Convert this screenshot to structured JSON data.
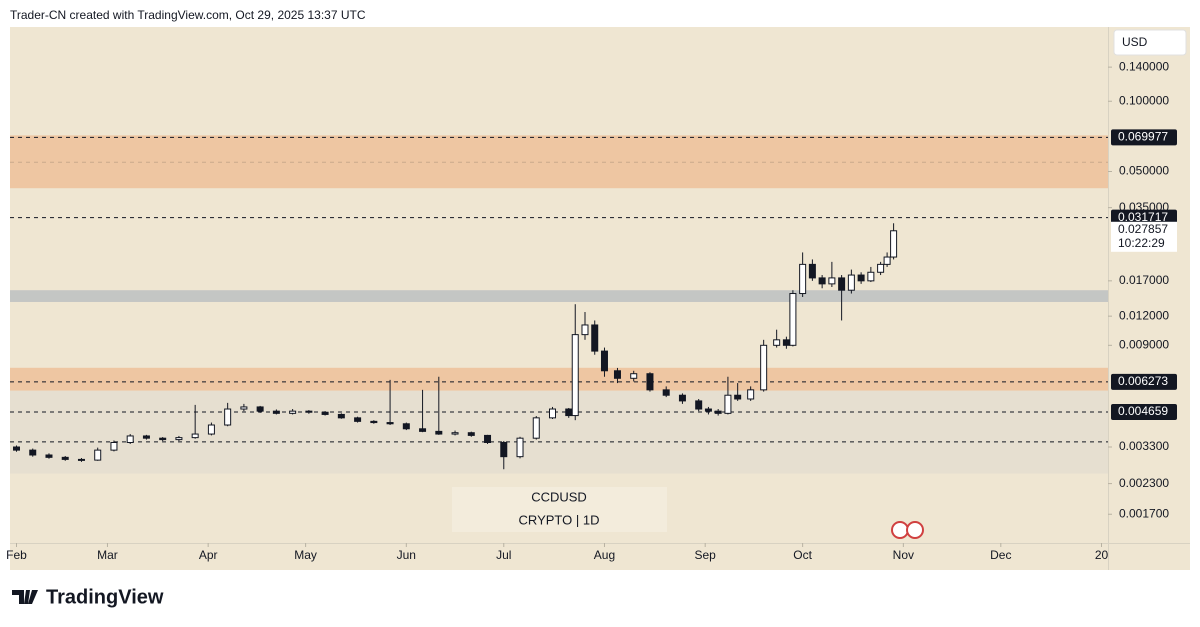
{
  "header": "Trader-CN created with TradingView.com, Oct 29, 2025 13:37 UTC",
  "brand": "TradingView",
  "chart_data": {
    "type": "candlestick",
    "symbol": "CCDUSD",
    "interval": "CRYPTO | 1D",
    "currency": "USD",
    "log_scale": true,
    "up_color": "#ffffff",
    "down_color": "#131722",
    "ylim": [
      0.00128,
      0.208
    ],
    "yticks": [
      {
        "value": 0.14,
        "label": "0.140000"
      },
      {
        "value": 0.1,
        "label": "0.100000"
      },
      {
        "value": 0.05,
        "label": "0.050000"
      },
      {
        "value": 0.035,
        "label": "0.035000"
      },
      {
        "value": 0.017,
        "label": "0.017000"
      },
      {
        "value": 0.012,
        "label": "0.012000"
      },
      {
        "value": 0.009,
        "label": "0.009000"
      },
      {
        "value": 0.0033,
        "label": "0.003300"
      },
      {
        "value": 0.0023,
        "label": "0.002300"
      },
      {
        "value": 0.0017,
        "label": "0.001700"
      }
    ],
    "xlim": [
      -2,
      336
    ],
    "xticks": [
      {
        "value": 0,
        "label": "Feb"
      },
      {
        "value": 28,
        "label": "Mar"
      },
      {
        "value": 59,
        "label": "Apr"
      },
      {
        "value": 89,
        "label": "May"
      },
      {
        "value": 120,
        "label": "Jun"
      },
      {
        "value": 150,
        "label": "Jul"
      },
      {
        "value": 181,
        "label": "Aug"
      },
      {
        "value": 212,
        "label": "Sep"
      },
      {
        "value": 242,
        "label": "Oct"
      },
      {
        "value": 273,
        "label": "Nov"
      },
      {
        "value": 303,
        "label": "Dec"
      },
      {
        "value": 334,
        "label": "20"
      }
    ],
    "zones": [
      {
        "lo": 0.0424,
        "hi": 0.0714,
        "color": "#eec6a2"
      },
      {
        "lo": 0.0138,
        "hi": 0.0155,
        "color": "#c4c6c4"
      },
      {
        "lo": 0.00575,
        "hi": 0.00721,
        "color": "#eec6a2"
      },
      {
        "lo": 0.00254,
        "hi": 0.00575,
        "color": "#e6dfd0"
      }
    ],
    "levels": [
      0.069977,
      0.031717,
      0.006273,
      0.004659
    ],
    "guides": [
      0.0548,
      0.00347
    ],
    "last_price": "0.027857",
    "countdown": "10:22:29",
    "x": [
      0,
      5,
      10,
      15,
      20,
      25,
      30,
      35,
      40,
      45,
      50,
      55,
      60,
      65,
      70,
      75,
      80,
      85,
      90,
      95,
      100,
      105,
      110,
      115,
      120,
      125,
      130,
      135,
      140,
      145,
      150,
      155,
      160,
      165,
      170,
      172,
      175,
      178,
      181,
      185,
      190,
      195,
      200,
      205,
      210,
      213,
      216,
      219,
      222,
      226,
      230,
      234,
      237,
      239,
      242,
      245,
      248,
      251,
      254,
      257,
      260,
      263,
      266,
      268,
      270
    ],
    "ohlc": [
      [
        0.0033,
        0.00335,
        0.00315,
        0.0032
      ],
      [
        0.0032,
        0.00325,
        0.003,
        0.00305
      ],
      [
        0.00305,
        0.0031,
        0.00294,
        0.00298
      ],
      [
        0.00298,
        0.00302,
        0.00288,
        0.00292
      ],
      [
        0.00292,
        0.00296,
        0.00285,
        0.0029
      ],
      [
        0.0029,
        0.00328,
        0.00288,
        0.0032
      ],
      [
        0.0032,
        0.00352,
        0.00316,
        0.00345
      ],
      [
        0.00345,
        0.00375,
        0.0034,
        0.00368
      ],
      [
        0.00368,
        0.00372,
        0.00355,
        0.0036
      ],
      [
        0.0036,
        0.00364,
        0.0035,
        0.00355
      ],
      [
        0.00355,
        0.00368,
        0.0035,
        0.00362
      ],
      [
        0.00362,
        0.005,
        0.00358,
        0.00375
      ],
      [
        0.00375,
        0.0042,
        0.0037,
        0.0041
      ],
      [
        0.0041,
        0.0051,
        0.00405,
        0.0048
      ],
      [
        0.0048,
        0.00505,
        0.0047,
        0.0049
      ],
      [
        0.0049,
        0.00495,
        0.00462,
        0.0047
      ],
      [
        0.0047,
        0.00478,
        0.00455,
        0.0046
      ],
      [
        0.0046,
        0.0048,
        0.00455,
        0.0047
      ],
      [
        0.0047,
        0.00475,
        0.00458,
        0.00465
      ],
      [
        0.00465,
        0.0047,
        0.0045,
        0.00455
      ],
      [
        0.00455,
        0.0046,
        0.00436,
        0.0044
      ],
      [
        0.0044,
        0.00445,
        0.0042,
        0.00425
      ],
      [
        0.00425,
        0.0043,
        0.00415,
        0.0042
      ],
      [
        0.0042,
        0.0064,
        0.0041,
        0.00415
      ],
      [
        0.00415,
        0.0042,
        0.0039,
        0.00395
      ],
      [
        0.00395,
        0.0058,
        0.00382,
        0.00385
      ],
      [
        0.00385,
        0.0066,
        0.00372,
        0.00375
      ],
      [
        0.00375,
        0.00388,
        0.0037,
        0.0038
      ],
      [
        0.0038,
        0.00384,
        0.00365,
        0.0037
      ],
      [
        0.0037,
        0.00372,
        0.0034,
        0.00345
      ],
      [
        0.00345,
        0.0035,
        0.00265,
        0.003
      ],
      [
        0.003,
        0.00365,
        0.00295,
        0.0036
      ],
      [
        0.0036,
        0.00448,
        0.00355,
        0.0044
      ],
      [
        0.0044,
        0.0049,
        0.00435,
        0.0048
      ],
      [
        0.0048,
        0.00485,
        0.0044,
        0.0045
      ],
      [
        0.0045,
        0.0135,
        0.0043,
        0.01
      ],
      [
        0.01,
        0.0125,
        0.0095,
        0.011
      ],
      [
        0.011,
        0.0115,
        0.0082,
        0.0085
      ],
      [
        0.0085,
        0.0088,
        0.0066,
        0.007
      ],
      [
        0.007,
        0.0072,
        0.0062,
        0.0065
      ],
      [
        0.0065,
        0.007,
        0.0063,
        0.0068
      ],
      [
        0.0068,
        0.0069,
        0.0057,
        0.0058
      ],
      [
        0.0058,
        0.006,
        0.0054,
        0.0055
      ],
      [
        0.0055,
        0.0056,
        0.00505,
        0.0052
      ],
      [
        0.0052,
        0.0053,
        0.0047,
        0.0048
      ],
      [
        0.0048,
        0.0049,
        0.00455,
        0.0047
      ],
      [
        0.0047,
        0.0048,
        0.0045,
        0.0046
      ],
      [
        0.0046,
        0.0066,
        0.00455,
        0.0055
      ],
      [
        0.0055,
        0.0062,
        0.0052,
        0.0053
      ],
      [
        0.0053,
        0.006,
        0.0052,
        0.0058
      ],
      [
        0.0058,
        0.0095,
        0.0057,
        0.009
      ],
      [
        0.009,
        0.0105,
        0.0088,
        0.0095
      ],
      [
        0.0095,
        0.0098,
        0.0087,
        0.009
      ],
      [
        0.009,
        0.0155,
        0.0089,
        0.015
      ],
      [
        0.015,
        0.0225,
        0.0145,
        0.02
      ],
      [
        0.02,
        0.021,
        0.017,
        0.0175
      ],
      [
        0.0175,
        0.018,
        0.0158,
        0.0165
      ],
      [
        0.0165,
        0.0205,
        0.016,
        0.0175
      ],
      [
        0.0175,
        0.018,
        0.0115,
        0.0155
      ],
      [
        0.0155,
        0.019,
        0.015,
        0.018
      ],
      [
        0.018,
        0.0185,
        0.0165,
        0.017
      ],
      [
        0.017,
        0.0195,
        0.0168,
        0.0185
      ],
      [
        0.0185,
        0.0205,
        0.018,
        0.02
      ],
      [
        0.02,
        0.0225,
        0.0195,
        0.0215
      ],
      [
        0.0215,
        0.03,
        0.021,
        0.027857
      ]
    ]
  }
}
